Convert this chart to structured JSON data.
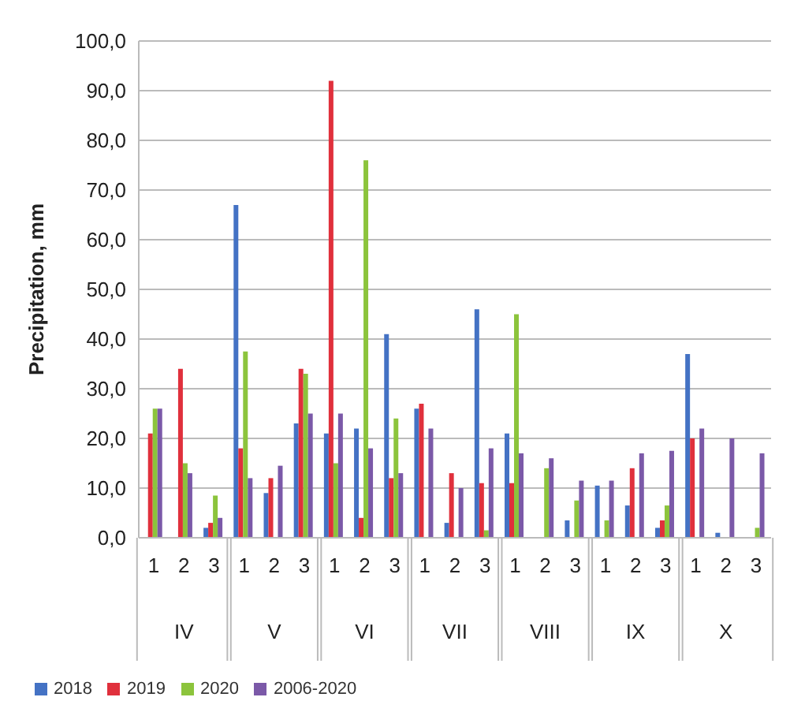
{
  "chart_data": {
    "type": "bar",
    "ylabel": "Precipitation, mm",
    "categories": [
      "1",
      "2",
      "3",
      "1",
      "2",
      "3",
      "1",
      "2",
      "3",
      "1",
      "2",
      "3",
      "1",
      "2",
      "3",
      "1",
      "2",
      "3",
      "1",
      "2",
      "3"
    ],
    "annotations": [
      "IV",
      "V",
      "VI",
      "VII",
      "VIII",
      "IX",
      "X"
    ],
    "series": [
      {
        "name": "2018",
        "color": "#4472c4",
        "values": [
          0,
          0,
          2,
          67,
          9,
          23,
          21,
          22,
          41,
          26,
          3,
          46,
          21,
          0,
          3.5,
          10.5,
          6.5,
          2,
          37,
          1,
          0
        ]
      },
      {
        "name": "2019",
        "color": "#e0303c",
        "values": [
          21,
          34,
          3,
          18,
          12,
          34,
          92,
          4,
          12,
          27,
          13,
          11,
          11,
          0,
          0,
          0,
          14,
          3.5,
          20,
          0,
          0
        ]
      },
      {
        "name": "2020",
        "color": "#8cc43c",
        "values": [
          26,
          15,
          8.5,
          37.5,
          0,
          33,
          15,
          76,
          24,
          0,
          0,
          1.5,
          45,
          14,
          7.5,
          3.5,
          0,
          6.5,
          0,
          0,
          2
        ]
      },
      {
        "name": "2006-2020",
        "color": "#7b59a8",
        "values": [
          26,
          13,
          4,
          12,
          14.5,
          25,
          25,
          18,
          13,
          22,
          10,
          18,
          17,
          16,
          11.5,
          11.5,
          17,
          17.5,
          22,
          20,
          17
        ]
      }
    ],
    "ylim": [
      0,
      100
    ],
    "yticks": [
      {
        "value": 0,
        "label": "0,0"
      },
      {
        "value": 10,
        "label": "10,0"
      },
      {
        "value": 20,
        "label": "20,0"
      },
      {
        "value": 30,
        "label": "30,0"
      },
      {
        "value": 40,
        "label": "40,0"
      },
      {
        "value": 50,
        "label": "50,0"
      },
      {
        "value": 60,
        "label": "60,0"
      },
      {
        "value": 70,
        "label": "70,0"
      },
      {
        "value": 80,
        "label": "80,0"
      },
      {
        "value": 90,
        "label": "90,0"
      },
      {
        "value": 100,
        "label": "100,0"
      }
    ],
    "grid": "y",
    "legend": "bottom left"
  }
}
